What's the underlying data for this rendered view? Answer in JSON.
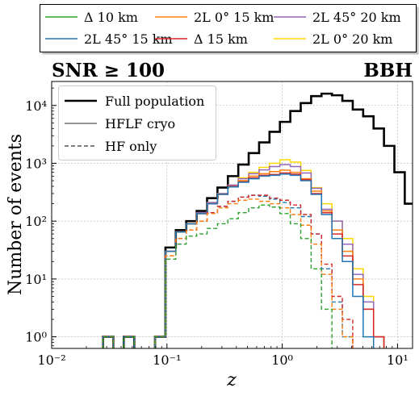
{
  "chart_data": {
    "type": "line",
    "step": true,
    "x_scale": "log",
    "y_scale": "log",
    "xlim": [
      0.01,
      13.5
    ],
    "ylim": [
      0.63,
      26000
    ],
    "xlabel": "z",
    "ylabel": "Number of events",
    "panel_label_left": "SNR ≥ 100",
    "panel_label_right": "BBH",
    "grid": true,
    "x_ticks": [
      {
        "value": 0.01,
        "label": "10⁻²"
      },
      {
        "value": 0.1,
        "label": "10⁻¹"
      },
      {
        "value": 1,
        "label": "10⁰"
      },
      {
        "value": 10,
        "label": "10¹"
      }
    ],
    "y_ticks": [
      {
        "value": 1,
        "label": "10⁰"
      },
      {
        "value": 10,
        "label": "10¹"
      },
      {
        "value": 100,
        "label": "10²"
      },
      {
        "value": 1000,
        "label": "10³"
      },
      {
        "value": 10000,
        "label": "10⁴"
      }
    ],
    "bin_edges": [
      0.0226,
      0.0279,
      0.0343,
      0.0422,
      0.052,
      0.064,
      0.0788,
      0.097,
      0.1194,
      0.147,
      0.181,
      0.2228,
      0.2743,
      0.3377,
      0.4157,
      0.5117,
      0.6299,
      0.7754,
      0.9545,
      1.175,
      1.447,
      1.781,
      2.192,
      2.699,
      3.322,
      4.09,
      5.035,
      6.198,
      7.63,
      9.393,
      11.56,
      14.24
    ],
    "style_legend": [
      {
        "name": "Full population",
        "style": "thick-solid"
      },
      {
        "name": "HFLF cryo",
        "style": "solid"
      },
      {
        "name": "HF only",
        "style": "dashed"
      }
    ],
    "color_legend": [
      {
        "name": "Δ 10 km",
        "color": "#2ca02c"
      },
      {
        "name": "2L 45° 15 km",
        "color": "#1f77b4"
      },
      {
        "name": "2L 0° 15 km",
        "color": "#ff7f0e"
      },
      {
        "name": "Δ 15 km",
        "color": "#d62728"
      },
      {
        "name": "2L 45° 20 km",
        "color": "#9467bd"
      },
      {
        "name": "2L 0° 20 km",
        "color": "#ffd700"
      }
    ],
    "series": [
      {
        "color": "#000000",
        "style": "thick-solid",
        "values": [
          0,
          1,
          0,
          1,
          0,
          0,
          1,
          35,
          70,
          100,
          150,
          250,
          380,
          600,
          950,
          1500,
          2300,
          3500,
          5200,
          8000,
          11000,
          14500,
          16000,
          15000,
          12000,
          8500,
          6500,
          4000,
          2000,
          700,
          200
        ]
      },
      {
        "color": "#ffd700",
        "style": "solid",
        "values": [
          0,
          1,
          0,
          1,
          0,
          0,
          1,
          30,
          65,
          90,
          140,
          210,
          300,
          420,
          560,
          700,
          850,
          1000,
          1150,
          1050,
          750,
          380,
          200,
          100,
          50,
          15,
          5,
          1,
          0,
          0,
          0
        ]
      },
      {
        "color": "#9467bd",
        "style": "solid",
        "values": [
          0,
          1,
          0,
          1,
          0,
          0,
          1,
          30,
          65,
          90,
          140,
          210,
          300,
          420,
          540,
          660,
          770,
          880,
          950,
          880,
          680,
          370,
          160,
          100,
          40,
          12,
          4,
          1,
          0,
          0,
          0
        ]
      },
      {
        "color": "#ff7f0e",
        "style": "solid",
        "values": [
          0,
          1,
          0,
          1,
          0,
          0,
          1,
          30,
          65,
          90,
          135,
          200,
          290,
          400,
          500,
          600,
          660,
          720,
          760,
          700,
          540,
          330,
          150,
          70,
          30,
          10,
          3,
          1,
          0,
          0,
          0
        ]
      },
      {
        "color": "#d62728",
        "style": "solid",
        "values": [
          0,
          1,
          0,
          1,
          0,
          0,
          1,
          30,
          65,
          90,
          135,
          200,
          290,
          400,
          480,
          560,
          620,
          640,
          680,
          650,
          520,
          300,
          140,
          60,
          25,
          8,
          3,
          1,
          0,
          0,
          0
        ]
      },
      {
        "color": "#1f77b4",
        "style": "solid",
        "values": [
          0,
          1,
          0,
          1,
          0,
          0,
          1,
          30,
          65,
          90,
          135,
          200,
          290,
          390,
          470,
          540,
          600,
          620,
          650,
          620,
          500,
          290,
          130,
          50,
          20,
          5,
          1,
          0,
          0,
          0,
          0
        ]
      },
      {
        "color": "#1f77b4",
        "style": "dashed",
        "values": [
          0,
          1,
          0,
          1,
          0,
          0,
          1,
          25,
          50,
          70,
          100,
          140,
          180,
          220,
          260,
          280,
          270,
          240,
          210,
          170,
          120,
          60,
          15,
          4,
          1,
          0,
          0,
          0,
          0,
          0,
          0
        ]
      },
      {
        "color": "#d62728",
        "style": "dashed",
        "values": [
          0,
          1,
          0,
          1,
          0,
          0,
          1,
          25,
          50,
          70,
          100,
          140,
          180,
          220,
          260,
          280,
          280,
          250,
          230,
          190,
          130,
          60,
          18,
          5,
          2,
          0,
          0,
          0,
          0,
          0,
          0
        ]
      },
      {
        "color": "#ff7f0e",
        "style": "dashed",
        "values": [
          0,
          1,
          0,
          1,
          0,
          0,
          1,
          25,
          50,
          70,
          100,
          135,
          170,
          200,
          230,
          240,
          220,
          200,
          170,
          130,
          85,
          40,
          12,
          3,
          1,
          0,
          0,
          0,
          0,
          0,
          0
        ]
      },
      {
        "color": "#2ca02c",
        "style": "dashed",
        "values": [
          0,
          1,
          0,
          1,
          0,
          0,
          1,
          22,
          40,
          55,
          60,
          75,
          90,
          110,
          140,
          170,
          190,
          175,
          135,
          90,
          50,
          15,
          3,
          0,
          0,
          0,
          0,
          0,
          0,
          0,
          0
        ]
      }
    ]
  }
}
